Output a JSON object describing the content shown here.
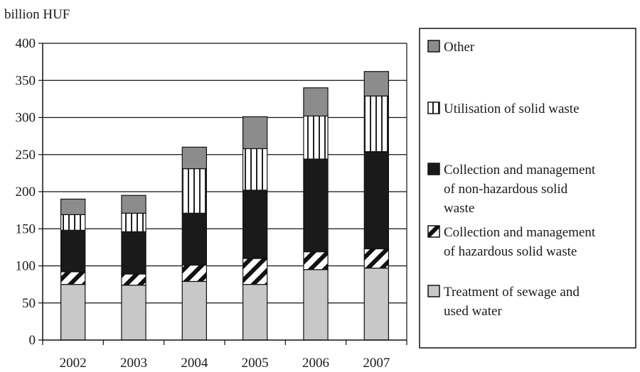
{
  "chart_data": {
    "type": "bar",
    "stacked": true,
    "y_unit_label": "billion HUF",
    "categories": [
      "2002",
      "2003",
      "2004",
      "2005",
      "2006",
      "2007"
    ],
    "ylim": [
      0,
      400
    ],
    "yticks": [
      0,
      50,
      100,
      150,
      200,
      250,
      300,
      350,
      400
    ],
    "grid": true,
    "legend_position": "right",
    "series": [
      {
        "name": "Treatment of sewage and used water",
        "legend_lines": [
          "Treatment of sewage and",
          "used water"
        ],
        "pattern": "light-gray",
        "values": [
          75,
          74,
          79,
          75,
          95,
          97
        ]
      },
      {
        "name": "Collection and management of hazardous solid waste",
        "legend_lines": [
          "Collection and management",
          "of hazardous solid waste"
        ],
        "pattern": "diagonal-stripes",
        "values": [
          17,
          15,
          22,
          35,
          24,
          26
        ]
      },
      {
        "name": "Collection and management of non-hazardous solid waste",
        "legend_lines": [
          "Collection and management",
          "of non-hazardous solid",
          "waste"
        ],
        "pattern": "black",
        "values": [
          56,
          57,
          70,
          92,
          125,
          131
        ]
      },
      {
        "name": "Utilisation of solid waste",
        "legend_lines": [
          "Utilisation of solid waste"
        ],
        "pattern": "vertical-stripes",
        "values": [
          21,
          25,
          60,
          56,
          58,
          75
        ]
      },
      {
        "name": "Other",
        "legend_lines": [
          "Other"
        ],
        "pattern": "dark-gray",
        "values": [
          21,
          24,
          29,
          43,
          38,
          33
        ]
      }
    ]
  }
}
